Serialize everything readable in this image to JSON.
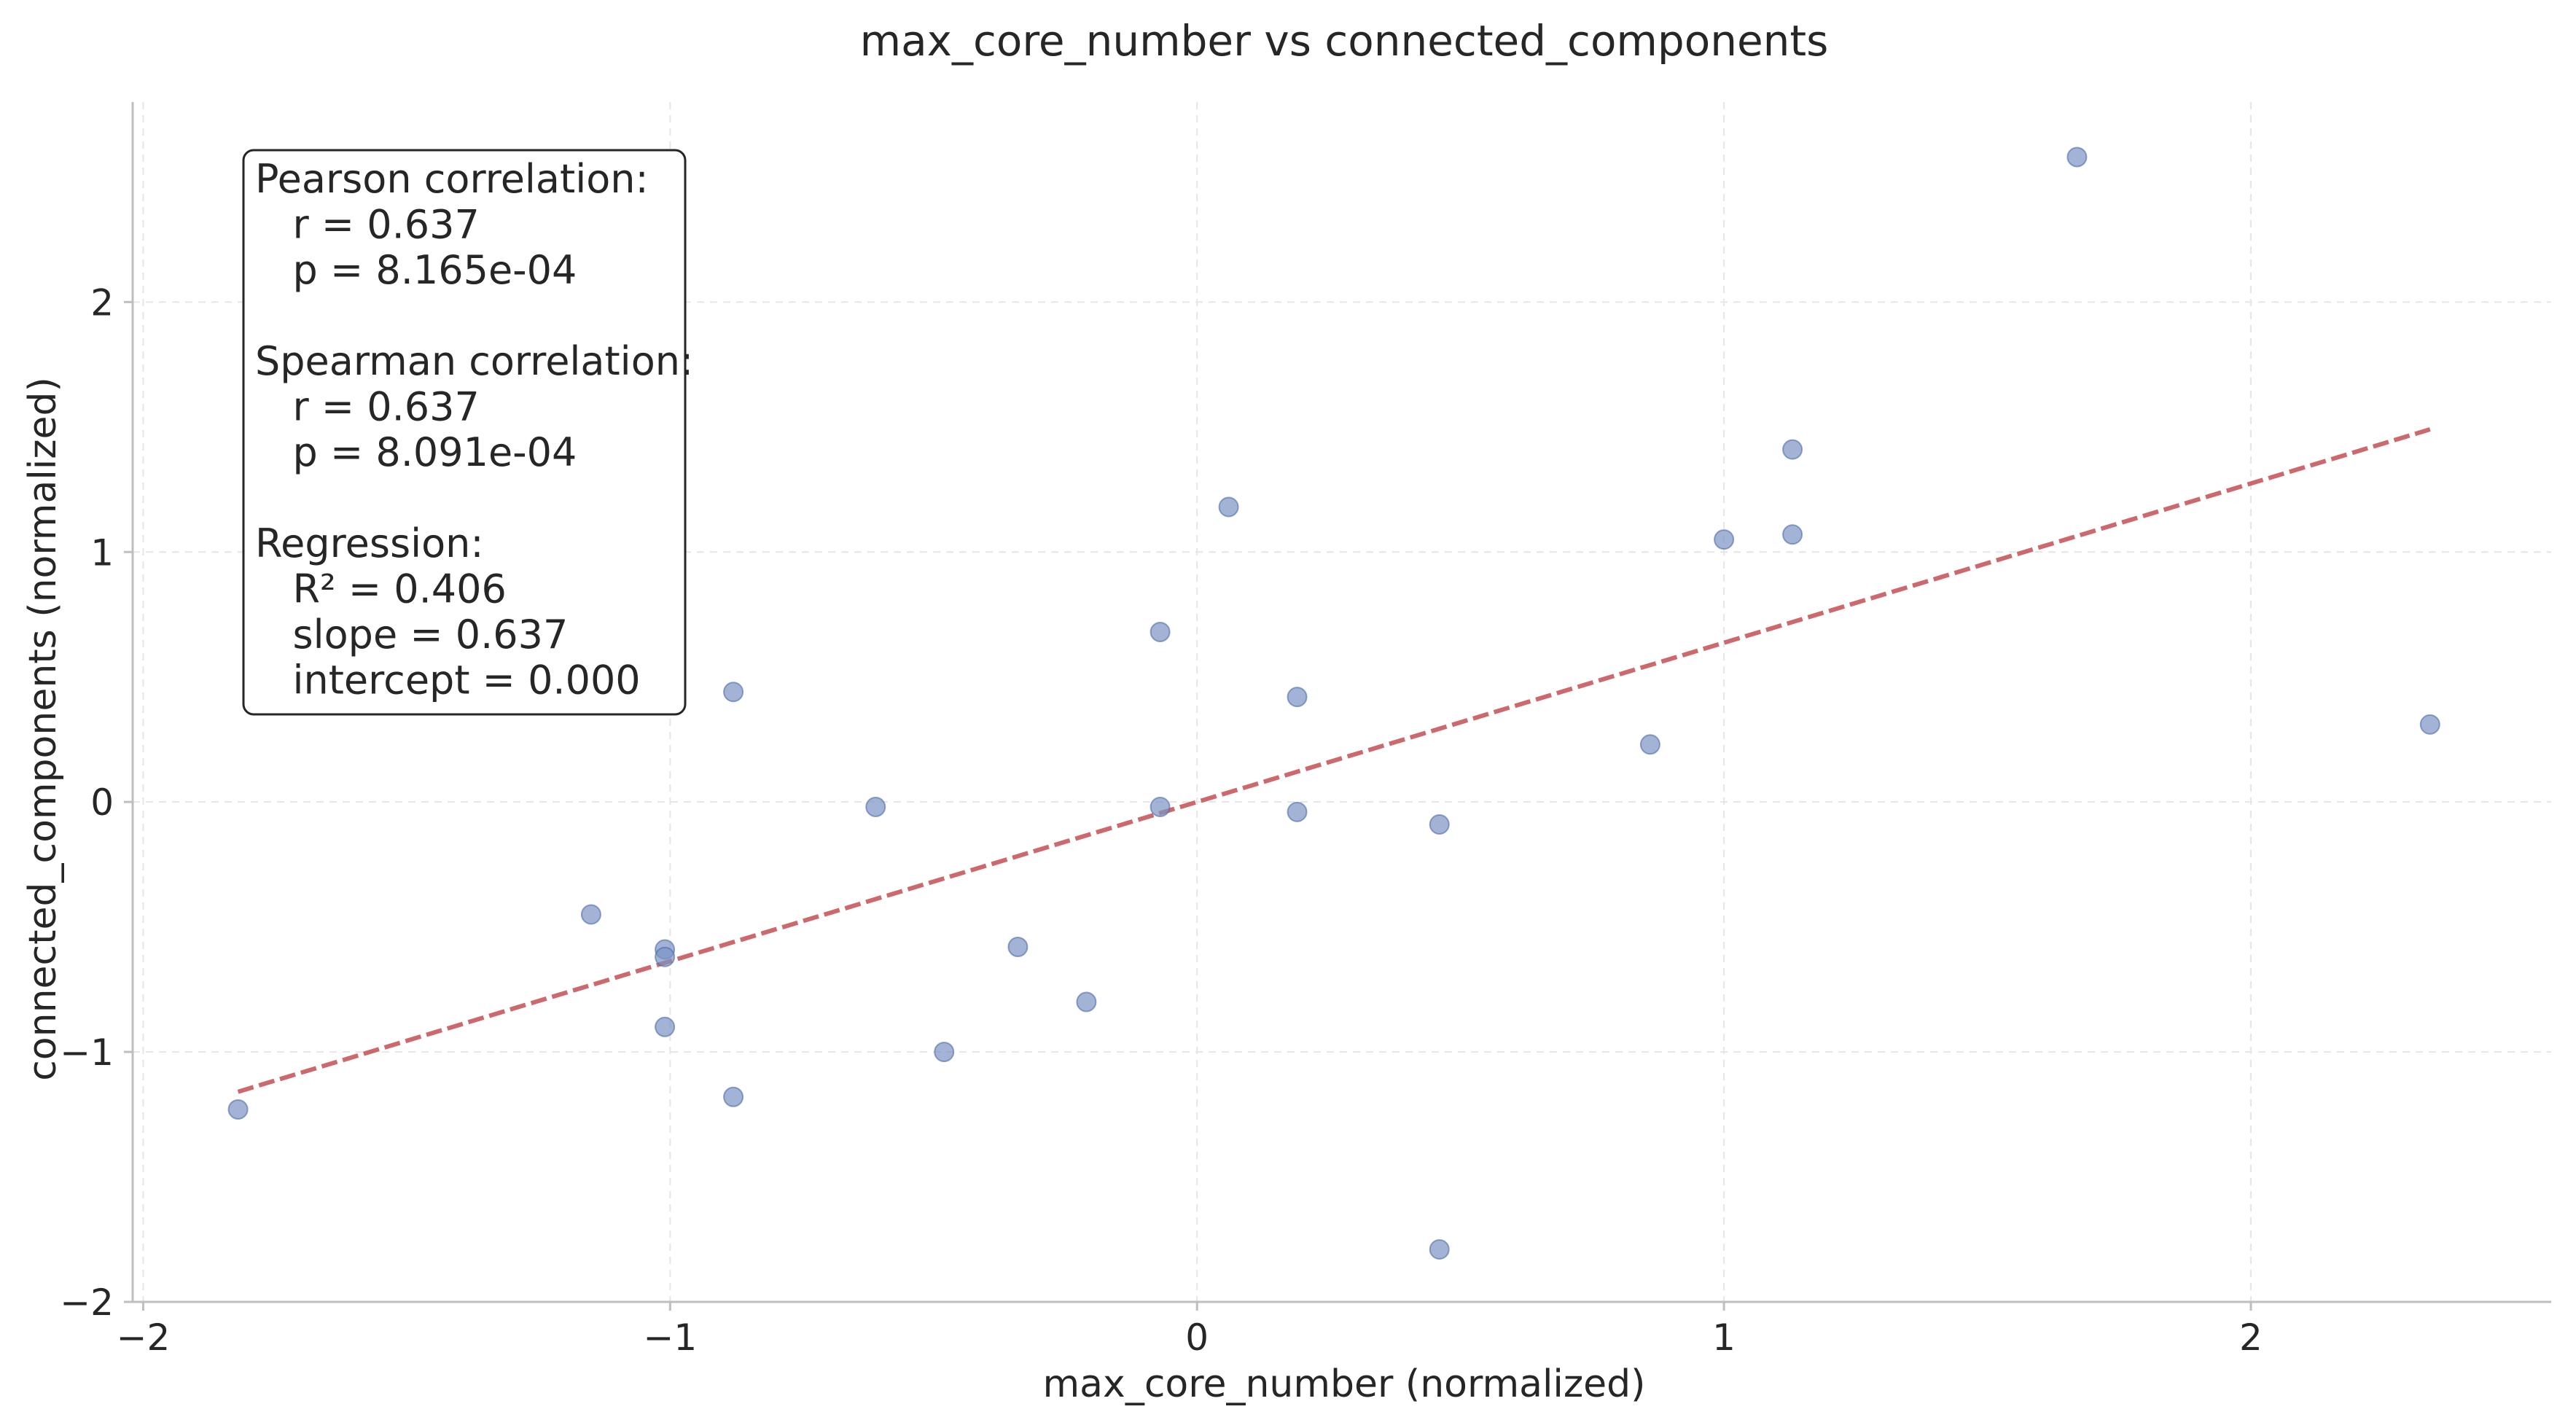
{
  "chart_data": {
    "type": "scatter",
    "title": "max_core_number vs connected_components",
    "xlabel": "max_core_number (normalized)",
    "ylabel": "connected_components (normalized)",
    "xlim": [
      -2.02,
      2.57
    ],
    "ylim": [
      -2.0,
      2.8
    ],
    "xticks": [
      -2,
      -1,
      0,
      1,
      2
    ],
    "yticks": [
      -2,
      -1,
      0,
      1,
      2
    ],
    "xtick_labels": [
      "−2",
      "−1",
      "0",
      "1",
      "2"
    ],
    "ytick_labels": [
      "−2",
      "−1",
      "0",
      "1",
      "2"
    ],
    "grid": true,
    "points": [
      {
        "x": -1.82,
        "y": -1.23
      },
      {
        "x": -1.15,
        "y": -0.45
      },
      {
        "x": -1.01,
        "y": -0.59
      },
      {
        "x": -1.01,
        "y": -0.62
      },
      {
        "x": -1.01,
        "y": -0.9
      },
      {
        "x": -0.88,
        "y": 0.44
      },
      {
        "x": -0.88,
        "y": -1.18
      },
      {
        "x": -0.61,
        "y": -0.02
      },
      {
        "x": -0.48,
        "y": -1.0
      },
      {
        "x": -0.34,
        "y": -0.58
      },
      {
        "x": -0.21,
        "y": -0.8
      },
      {
        "x": -0.07,
        "y": 0.68
      },
      {
        "x": -0.07,
        "y": -0.02
      },
      {
        "x": 0.06,
        "y": 1.18
      },
      {
        "x": 0.19,
        "y": 0.42
      },
      {
        "x": 0.19,
        "y": -0.04
      },
      {
        "x": 0.46,
        "y": -0.09
      },
      {
        "x": 0.46,
        "y": -1.79
      },
      {
        "x": 0.86,
        "y": 0.23
      },
      {
        "x": 1.0,
        "y": 1.05
      },
      {
        "x": 1.13,
        "y": 1.41
      },
      {
        "x": 1.13,
        "y": 1.07
      },
      {
        "x": 1.67,
        "y": 2.58
      },
      {
        "x": 2.34,
        "y": 0.31
      }
    ],
    "regression": {
      "slope": 0.637,
      "intercept": 0.0,
      "x_range": [
        -1.82,
        2.34
      ]
    },
    "stats_text": [
      "Pearson correlation:",
      "  r = 0.637",
      "  p = 8.165e-04",
      "",
      "Spearman correlation:",
      "  r = 0.637",
      "  p = 8.091e-04",
      "",
      "Regression:",
      "  R² = 0.406",
      "  slope = 0.637",
      "  intercept = 0.000"
    ],
    "colors": {
      "points": "#7b93c4",
      "regression": "#c44e52"
    }
  }
}
